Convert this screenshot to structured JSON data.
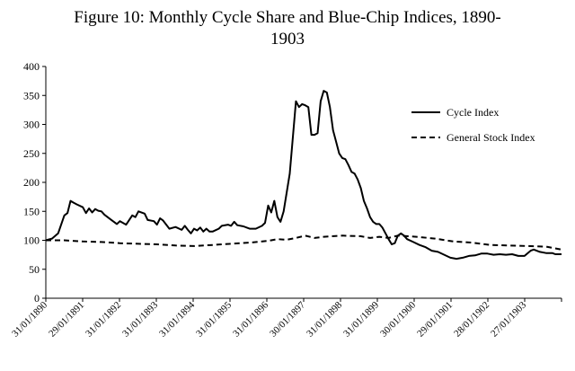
{
  "title_line1": "Figure 10: Monthly Cycle Share and Blue-Chip Indices, 1890-",
  "title_line2": "1903",
  "chart_data": {
    "type": "line",
    "title": "Figure 10: Monthly Cycle Share and Blue-Chip Indices, 1890-1903",
    "xlabel": "",
    "ylabel": "",
    "ylim": [
      0,
      400
    ],
    "yticks": [
      0,
      50,
      100,
      150,
      200,
      250,
      300,
      350,
      400
    ],
    "xticks": [
      "31/01/1890",
      "29/01/1891",
      "31/01/1892",
      "31/01/1893",
      "31/01/1894",
      "31/01/1895",
      "31/01/1896",
      "30/01/1897",
      "31/01/1898",
      "31/01/1899",
      "30/01/1900",
      "29/01/1901",
      "28/01/1902",
      "27/01/1903"
    ],
    "xlim": [
      "1890-01",
      "1903-12"
    ],
    "legend_position": "right",
    "grid": false,
    "series": [
      {
        "name": "Cycle Index",
        "style": "solid",
        "color": "#000000",
        "points": [
          [
            "1890-01",
            100
          ],
          [
            "1890-03",
            103
          ],
          [
            "1890-05",
            112
          ],
          [
            "1890-07",
            143
          ],
          [
            "1890-08",
            147
          ],
          [
            "1890-09",
            168
          ],
          [
            "1890-10",
            165
          ],
          [
            "1890-11",
            162
          ],
          [
            "1891-01",
            157
          ],
          [
            "1891-02",
            147
          ],
          [
            "1891-03",
            155
          ],
          [
            "1891-04",
            148
          ],
          [
            "1891-05",
            154
          ],
          [
            "1891-06",
            151
          ],
          [
            "1891-07",
            150
          ],
          [
            "1891-08",
            144
          ],
          [
            "1891-10",
            136
          ],
          [
            "1891-12",
            128
          ],
          [
            "1892-01",
            133
          ],
          [
            "1892-03",
            127
          ],
          [
            "1892-05",
            143
          ],
          [
            "1892-06",
            140
          ],
          [
            "1892-07",
            150
          ],
          [
            "1892-09",
            146
          ],
          [
            "1892-10",
            135
          ],
          [
            "1892-12",
            133
          ],
          [
            "1893-01",
            127
          ],
          [
            "1893-02",
            138
          ],
          [
            "1893-03",
            134
          ],
          [
            "1893-05",
            120
          ],
          [
            "1893-07",
            123
          ],
          [
            "1893-09",
            118
          ],
          [
            "1893-10",
            125
          ],
          [
            "1893-11",
            118
          ],
          [
            "1893-12",
            112
          ],
          [
            "1894-01",
            120
          ],
          [
            "1894-02",
            117
          ],
          [
            "1894-03",
            122
          ],
          [
            "1894-04",
            115
          ],
          [
            "1894-05",
            120
          ],
          [
            "1894-06",
            115
          ],
          [
            "1894-07",
            115
          ],
          [
            "1894-09",
            120
          ],
          [
            "1894-10",
            125
          ],
          [
            "1894-12",
            127
          ],
          [
            "1895-01",
            125
          ],
          [
            "1895-02",
            132
          ],
          [
            "1895-03",
            126
          ],
          [
            "1895-05",
            124
          ],
          [
            "1895-07",
            120
          ],
          [
            "1895-09",
            120
          ],
          [
            "1895-11",
            125
          ],
          [
            "1895-12",
            130
          ],
          [
            "1896-01",
            160
          ],
          [
            "1896-02",
            148
          ],
          [
            "1896-03",
            168
          ],
          [
            "1896-04",
            140
          ],
          [
            "1896-05",
            132
          ],
          [
            "1896-06",
            150
          ],
          [
            "1896-08",
            215
          ],
          [
            "1896-10",
            340
          ],
          [
            "1896-11",
            330
          ],
          [
            "1896-12",
            335
          ],
          [
            "1897-01",
            333
          ],
          [
            "1897-02",
            330
          ],
          [
            "1897-03",
            282
          ],
          [
            "1897-04",
            282
          ],
          [
            "1897-05",
            285
          ],
          [
            "1897-06",
            340
          ],
          [
            "1897-07",
            358
          ],
          [
            "1897-08",
            355
          ],
          [
            "1897-09",
            330
          ],
          [
            "1897-10",
            290
          ],
          [
            "1897-11",
            270
          ],
          [
            "1897-12",
            250
          ],
          [
            "1898-01",
            242
          ],
          [
            "1898-02",
            240
          ],
          [
            "1898-03",
            230
          ],
          [
            "1898-04",
            218
          ],
          [
            "1898-05",
            215
          ],
          [
            "1898-06",
            205
          ],
          [
            "1898-07",
            190
          ],
          [
            "1898-08",
            168
          ],
          [
            "1898-09",
            155
          ],
          [
            "1898-10",
            140
          ],
          [
            "1898-11",
            132
          ],
          [
            "1898-12",
            128
          ],
          [
            "1899-01",
            128
          ],
          [
            "1899-02",
            122
          ],
          [
            "1899-03",
            112
          ],
          [
            "1899-04",
            102
          ],
          [
            "1899-05",
            93
          ],
          [
            "1899-06",
            95
          ],
          [
            "1899-07",
            108
          ],
          [
            "1899-08",
            112
          ],
          [
            "1899-09",
            108
          ],
          [
            "1899-10",
            102
          ],
          [
            "1899-12",
            97
          ],
          [
            "1900-02",
            92
          ],
          [
            "1900-04",
            88
          ],
          [
            "1900-06",
            82
          ],
          [
            "1900-08",
            80
          ],
          [
            "1900-10",
            75
          ],
          [
            "1900-12",
            70
          ],
          [
            "1901-02",
            68
          ],
          [
            "1901-04",
            70
          ],
          [
            "1901-06",
            73
          ],
          [
            "1901-08",
            74
          ],
          [
            "1901-10",
            77
          ],
          [
            "1901-12",
            77
          ],
          [
            "1902-02",
            75
          ],
          [
            "1902-04",
            76
          ],
          [
            "1902-06",
            75
          ],
          [
            "1902-08",
            76
          ],
          [
            "1902-10",
            73
          ],
          [
            "1902-12",
            73
          ],
          [
            "1903-02",
            82
          ],
          [
            "1903-03",
            84
          ],
          [
            "1903-05",
            80
          ],
          [
            "1903-07",
            78
          ],
          [
            "1903-09",
            78
          ],
          [
            "1903-10",
            76
          ],
          [
            "1903-12",
            76
          ]
        ]
      },
      {
        "name": "General Stock Index",
        "style": "dashed",
        "color": "#000000",
        "points": [
          [
            "1890-01",
            100
          ],
          [
            "1890-07",
            100
          ],
          [
            "1891-01",
            98
          ],
          [
            "1891-07",
            97
          ],
          [
            "1892-01",
            95
          ],
          [
            "1892-07",
            94
          ],
          [
            "1893-01",
            93
          ],
          [
            "1893-07",
            91
          ],
          [
            "1894-01",
            90
          ],
          [
            "1894-07",
            92
          ],
          [
            "1895-01",
            94
          ],
          [
            "1895-07",
            96
          ],
          [
            "1896-01",
            99
          ],
          [
            "1896-04",
            102
          ],
          [
            "1896-07",
            101
          ],
          [
            "1896-10",
            104
          ],
          [
            "1897-01",
            108
          ],
          [
            "1897-04",
            104
          ],
          [
            "1897-07",
            106
          ],
          [
            "1898-01",
            108
          ],
          [
            "1898-07",
            107
          ],
          [
            "1898-10",
            104
          ],
          [
            "1899-01",
            106
          ],
          [
            "1899-04",
            104
          ],
          [
            "1899-07",
            108
          ],
          [
            "1900-01",
            106
          ],
          [
            "1900-07",
            103
          ],
          [
            "1901-01",
            98
          ],
          [
            "1901-07",
            96
          ],
          [
            "1902-01",
            92
          ],
          [
            "1902-07",
            91
          ],
          [
            "1903-01",
            90
          ],
          [
            "1903-07",
            89
          ],
          [
            "1903-12",
            84
          ]
        ]
      }
    ]
  }
}
